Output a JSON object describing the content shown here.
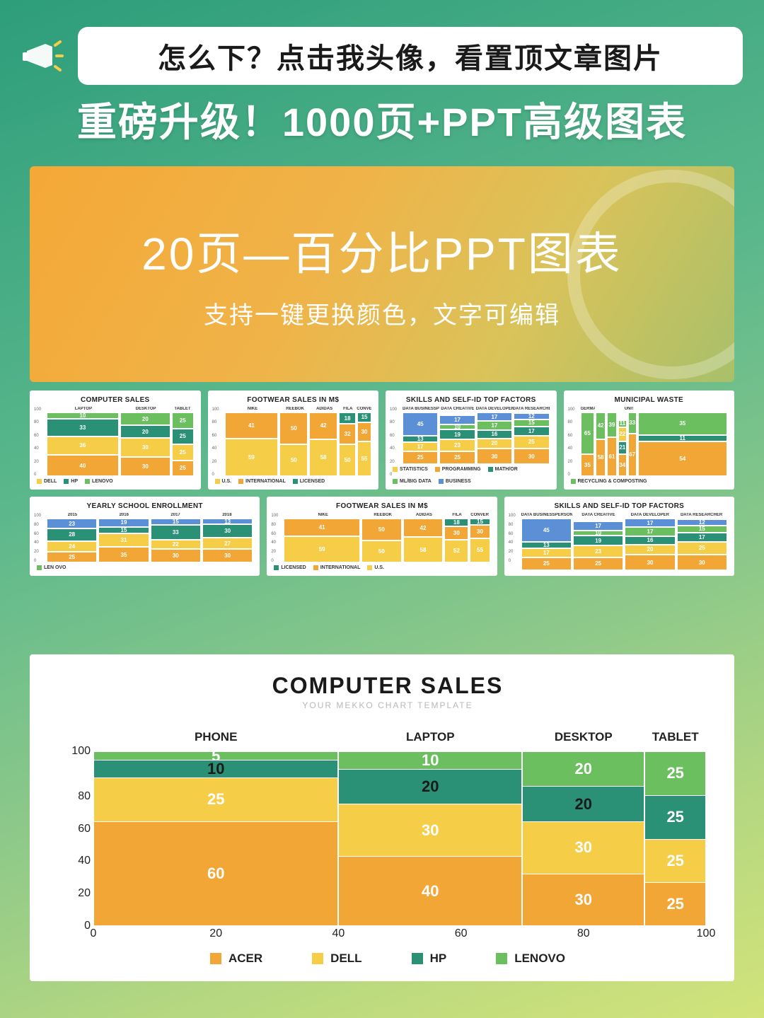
{
  "colors": {
    "orange": "#f2a636",
    "yellow": "#f5cd47",
    "teal": "#2a9076",
    "green": "#6bbf5e",
    "blue": "#5b8fd6",
    "white": "#ffffff",
    "gridbg": "#ffffff"
  },
  "banner": {
    "text": "怎么下？点击我头像，看置顶文章图片"
  },
  "headline": "重磅升级！1000页+PPT高级图表",
  "hero": {
    "title": "20页—百分比PPT图表",
    "subtitle": "支持一键更换颜色，文字可编辑"
  },
  "thumbs_row1": [
    {
      "title": "COMPUTER SALES",
      "legend": [
        "DELL",
        "HP",
        "LENOVO"
      ],
      "legend_colors": [
        "#f5cd47",
        "#2a9076",
        "#6bbf5e"
      ],
      "cats": [
        "LAPTOP",
        "DESKTOP",
        "TABLET"
      ],
      "cols": [
        {
          "w": 50,
          "segs": [
            {
              "v": 40,
              "c": "#f2a636"
            },
            {
              "v": 36,
              "c": "#f5cd47"
            },
            {
              "v": 33,
              "c": "#2a9076"
            },
            {
              "v": 10,
              "c": "#6bbf5e"
            }
          ]
        },
        {
          "w": 35,
          "segs": [
            {
              "v": 30,
              "c": "#f2a636"
            },
            {
              "v": 30,
              "c": "#f5cd47"
            },
            {
              "v": 20,
              "c": "#2a9076"
            },
            {
              "v": 20,
              "c": "#6bbf5e"
            }
          ]
        },
        {
          "w": 15,
          "segs": [
            {
              "v": 25,
              "c": "#f2a636"
            },
            {
              "v": 25,
              "c": "#f5cd47"
            },
            {
              "v": 25,
              "c": "#2a9076"
            },
            {
              "v": 25,
              "c": "#6bbf5e"
            }
          ]
        }
      ]
    },
    {
      "title": "FOOTWEAR SALES IN M$",
      "legend": [
        "U.S.",
        "INTERNATIONAL",
        "LICENSED"
      ],
      "legend_colors": [
        "#f5cd47",
        "#f2a636",
        "#2a9076"
      ],
      "cats": [
        "NIKE",
        "REEBOK",
        "ADIDAS",
        "FILA",
        "CONVERSE"
      ],
      "cols": [
        {
          "w": 38,
          "segs": [
            {
              "v": 59,
              "c": "#f5cd47"
            },
            {
              "v": 41,
              "c": "#f2a636"
            }
          ]
        },
        {
          "w": 20,
          "segs": [
            {
              "v": 50,
              "c": "#f5cd47"
            },
            {
              "v": 50,
              "c": "#f2a636"
            }
          ]
        },
        {
          "w": 20,
          "segs": [
            {
              "v": 58,
              "c": "#f5cd47"
            },
            {
              "v": 42,
              "c": "#f2a636"
            }
          ]
        },
        {
          "w": 12,
          "segs": [
            {
              "v": 50,
              "c": "#f5cd47"
            },
            {
              "v": 32,
              "c": "#f2a636"
            },
            {
              "v": 18,
              "c": "#2a9076"
            }
          ]
        },
        {
          "w": 10,
          "segs": [
            {
              "v": 55,
              "c": "#f5cd47"
            },
            {
              "v": 30,
              "c": "#f2a636"
            },
            {
              "v": 15,
              "c": "#2a9076"
            }
          ]
        }
      ]
    },
    {
      "title": "SKILLS AND SELF-ID TOP FACTORS",
      "legend": [
        "STATISTICS",
        "PROGRAMMING",
        "MATH/OR",
        "ML/BIG DATA",
        "BUSINESS"
      ],
      "legend_colors": [
        "#f5cd47",
        "#f2a636",
        "#2a9076",
        "#6bbf5e",
        "#5b8fd6"
      ],
      "cats": [
        "DATA BUSINESSPERSON",
        "DATA CREATIVE",
        "DATA DEVELOPER",
        "DATA RESEARCHER"
      ],
      "cols": [
        {
          "w": 25,
          "segs": [
            {
              "v": 25,
              "c": "#f2a636"
            },
            {
              "v": 17,
              "c": "#f5cd47"
            },
            {
              "v": 13,
              "c": "#2a9076"
            },
            {
              "v": 45,
              "c": "#5b8fd6"
            }
          ]
        },
        {
          "w": 25,
          "segs": [
            {
              "v": 25,
              "c": "#f2a636"
            },
            {
              "v": 23,
              "c": "#f5cd47"
            },
            {
              "v": 19,
              "c": "#2a9076"
            },
            {
              "v": 10,
              "c": "#6bbf5e"
            },
            {
              "v": 17,
              "c": "#5b8fd6"
            }
          ]
        },
        {
          "w": 25,
          "segs": [
            {
              "v": 30,
              "c": "#f2a636"
            },
            {
              "v": 20,
              "c": "#f5cd47"
            },
            {
              "v": 16,
              "c": "#2a9076"
            },
            {
              "v": 17,
              "c": "#6bbf5e"
            },
            {
              "v": 17,
              "c": "#5b8fd6"
            }
          ]
        },
        {
          "w": 25,
          "segs": [
            {
              "v": 30,
              "c": "#f2a636"
            },
            {
              "v": 25,
              "c": "#f5cd47"
            },
            {
              "v": 17,
              "c": "#2a9076"
            },
            {
              "v": 15,
              "c": "#6bbf5e"
            },
            {
              "v": 12,
              "c": "#5b8fd6"
            }
          ]
        }
      ]
    },
    {
      "title": "MUNICIPAL WASTE",
      "legend": [
        "RECYCLING & COMPOSTING"
      ],
      "legend_colors": [
        "#6bbf5e"
      ],
      "cats": [
        "GERMANY",
        "",
        "",
        "",
        "UNITED STATES"
      ],
      "cols": [
        {
          "w": 10,
          "segs": [
            {
              "v": 35,
              "c": "#f2a636"
            },
            {
              "v": 65,
              "c": "#6bbf5e"
            }
          ]
        },
        {
          "w": 7,
          "segs": [
            {
              "v": 58,
              "c": "#f2a636"
            },
            {
              "v": 42,
              "c": "#6bbf5e"
            }
          ]
        },
        {
          "w": 7,
          "segs": [
            {
              "v": 61,
              "c": "#f2a636"
            },
            {
              "v": 39,
              "c": "#6bbf5e"
            }
          ]
        },
        {
          "w": 6,
          "segs": [
            {
              "v": 34,
              "c": "#f2a636"
            },
            {
              "v": 21,
              "c": "#2a9076"
            },
            {
              "v": 22,
              "c": "#f5cd47"
            },
            {
              "v": 11,
              "c": "#6bbf5e"
            }
          ]
        },
        {
          "w": 6,
          "segs": [
            {
              "v": 67,
              "c": "#f2a636"
            },
            {
              "v": 33,
              "c": "#6bbf5e"
            }
          ]
        },
        {
          "w": 64,
          "segs": [
            {
              "v": 54,
              "c": "#f2a636"
            },
            {
              "v": 11,
              "c": "#2a9076"
            },
            {
              "v": 35,
              "c": "#6bbf5e"
            }
          ]
        }
      ]
    }
  ],
  "thumbs_row2": [
    {
      "title": "YEARLY SCHOOL ENROLLMENT",
      "legend": [
        "LEN OVO"
      ],
      "legend_colors": [
        "#6bbf5e"
      ],
      "cats": [
        "2015",
        "2016",
        "2017",
        "2018"
      ],
      "cols": [
        {
          "w": 25,
          "segs": [
            {
              "v": 25,
              "c": "#f2a636"
            },
            {
              "v": 24,
              "c": "#f5cd47"
            },
            {
              "v": 28,
              "c": "#2a9076"
            },
            {
              "v": 23,
              "c": "#5b8fd6"
            }
          ]
        },
        {
          "w": 25,
          "segs": [
            {
              "v": 35,
              "c": "#f2a636"
            },
            {
              "v": 31,
              "c": "#f5cd47"
            },
            {
              "v": 15,
              "c": "#2a9076"
            },
            {
              "v": 19,
              "c": "#5b8fd6"
            }
          ]
        },
        {
          "w": 25,
          "segs": [
            {
              "v": 30,
              "c": "#f2a636"
            },
            {
              "v": 22,
              "c": "#f5cd47"
            },
            {
              "v": 33,
              "c": "#2a9076"
            },
            {
              "v": 15,
              "c": "#5b8fd6"
            }
          ]
        },
        {
          "w": 25,
          "segs": [
            {
              "v": 30,
              "c": "#f2a636"
            },
            {
              "v": 27,
              "c": "#f5cd47"
            },
            {
              "v": 30,
              "c": "#2a9076"
            },
            {
              "v": 13,
              "c": "#5b8fd6"
            }
          ]
        }
      ]
    },
    {
      "title": "FOOTWEAR SALES IN M$",
      "legend": [
        "LICENSED",
        "INTERNATIONAL",
        "U.S."
      ],
      "legend_colors": [
        "#2a9076",
        "#f2a636",
        "#f5cd47"
      ],
      "cats": [
        "NIKE",
        "REEBOK",
        "ADIDAS",
        "FILA",
        "CONVER"
      ],
      "cols": [
        {
          "w": 38,
          "segs": [
            {
              "v": 59,
              "c": "#f5cd47"
            },
            {
              "v": 41,
              "c": "#f2a636"
            }
          ]
        },
        {
          "w": 20,
          "segs": [
            {
              "v": 50,
              "c": "#f5cd47"
            },
            {
              "v": 50,
              "c": "#f2a636"
            }
          ]
        },
        {
          "w": 20,
          "segs": [
            {
              "v": 58,
              "c": "#f5cd47"
            },
            {
              "v": 42,
              "c": "#f2a636"
            }
          ]
        },
        {
          "w": 12,
          "segs": [
            {
              "v": 52,
              "c": "#f5cd47"
            },
            {
              "v": 30,
              "c": "#f2a636"
            },
            {
              "v": 18,
              "c": "#2a9076"
            }
          ]
        },
        {
          "w": 10,
          "segs": [
            {
              "v": 55,
              "c": "#f5cd47"
            },
            {
              "v": 30,
              "c": "#f2a636"
            },
            {
              "v": 15,
              "c": "#2a9076"
            }
          ]
        }
      ]
    },
    {
      "title": "SKILLS AND SELF-ID TOP FACTORS",
      "legend": [],
      "legend_colors": [],
      "cats": [
        "DATA BUSINESSPERSON",
        "DATA CREATIVE",
        "DATA DEVELOPER",
        "DATA RESEARCHER"
      ],
      "cols": [
        {
          "w": 25,
          "segs": [
            {
              "v": 25,
              "c": "#f2a636"
            },
            {
              "v": 17,
              "c": "#f5cd47"
            },
            {
              "v": 13,
              "c": "#2a9076"
            },
            {
              "v": 45,
              "c": "#5b8fd6"
            }
          ]
        },
        {
          "w": 25,
          "segs": [
            {
              "v": 25,
              "c": "#f2a636"
            },
            {
              "v": 23,
              "c": "#f5cd47"
            },
            {
              "v": 19,
              "c": "#2a9076"
            },
            {
              "v": 10,
              "c": "#6bbf5e"
            },
            {
              "v": 17,
              "c": "#5b8fd6"
            }
          ]
        },
        {
          "w": 25,
          "segs": [
            {
              "v": 30,
              "c": "#f2a636"
            },
            {
              "v": 20,
              "c": "#f5cd47"
            },
            {
              "v": 16,
              "c": "#2a9076"
            },
            {
              "v": 17,
              "c": "#6bbf5e"
            },
            {
              "v": 17,
              "c": "#5b8fd6"
            }
          ]
        },
        {
          "w": 25,
          "segs": [
            {
              "v": 30,
              "c": "#f2a636"
            },
            {
              "v": 25,
              "c": "#f5cd47"
            },
            {
              "v": 17,
              "c": "#2a9076"
            },
            {
              "v": 15,
              "c": "#6bbf5e"
            },
            {
              "v": 12,
              "c": "#5b8fd6"
            }
          ]
        }
      ]
    }
  ],
  "main_chart": {
    "title": "COMPUTER SALES",
    "subtitle": "YOUR MEKKO CHART TEMPLATE",
    "type": "mekko",
    "y_ticks": [
      100,
      80,
      60,
      40,
      20,
      0
    ],
    "x_ticks": [
      0,
      20,
      40,
      60,
      80,
      100
    ],
    "categories": [
      {
        "label": "PHONE",
        "width": 40,
        "segments": [
          {
            "brand": "ACER",
            "value": 60,
            "color": "#f2a636",
            "text": "#ffffff"
          },
          {
            "brand": "DELL",
            "value": 25,
            "color": "#f5cd47",
            "text": "#ffffff"
          },
          {
            "brand": "HP",
            "value": 10,
            "color": "#2a9076",
            "text": "#1a1a1a"
          },
          {
            "brand": "LENOVO",
            "value": 5,
            "color": "#6bbf5e",
            "text": "#ffffff"
          }
        ]
      },
      {
        "label": "LAPTOP",
        "width": 30,
        "segments": [
          {
            "brand": "ACER",
            "value": 40,
            "color": "#f2a636",
            "text": "#ffffff"
          },
          {
            "brand": "DELL",
            "value": 30,
            "color": "#f5cd47",
            "text": "#ffffff"
          },
          {
            "brand": "HP",
            "value": 20,
            "color": "#2a9076",
            "text": "#1a1a1a"
          },
          {
            "brand": "LENOVO",
            "value": 10,
            "color": "#6bbf5e",
            "text": "#ffffff"
          }
        ]
      },
      {
        "label": "DESKTOP",
        "width": 20,
        "segments": [
          {
            "brand": "ACER",
            "value": 30,
            "color": "#f2a636",
            "text": "#ffffff"
          },
          {
            "brand": "DELL",
            "value": 30,
            "color": "#f5cd47",
            "text": "#ffffff"
          },
          {
            "brand": "HP",
            "value": 20,
            "color": "#2a9076",
            "text": "#1a1a1a"
          },
          {
            "brand": "LENOVO",
            "value": 20,
            "color": "#6bbf5e",
            "text": "#ffffff"
          }
        ]
      },
      {
        "label": "TABLET",
        "width": 10,
        "segments": [
          {
            "brand": "ACER",
            "value": 25,
            "color": "#f2a636",
            "text": "#ffffff"
          },
          {
            "brand": "DELL",
            "value": 25,
            "color": "#f5cd47",
            "text": "#ffffff"
          },
          {
            "brand": "HP",
            "value": 25,
            "color": "#2a9076",
            "text": "#ffffff"
          },
          {
            "brand": "LENOVO",
            "value": 25,
            "color": "#6bbf5e",
            "text": "#ffffff"
          }
        ]
      }
    ],
    "legend": [
      {
        "label": "ACER",
        "color": "#f2a636"
      },
      {
        "label": "DELL",
        "color": "#f5cd47"
      },
      {
        "label": "HP",
        "color": "#2a9076"
      },
      {
        "label": "LENOVO",
        "color": "#6bbf5e"
      }
    ]
  }
}
